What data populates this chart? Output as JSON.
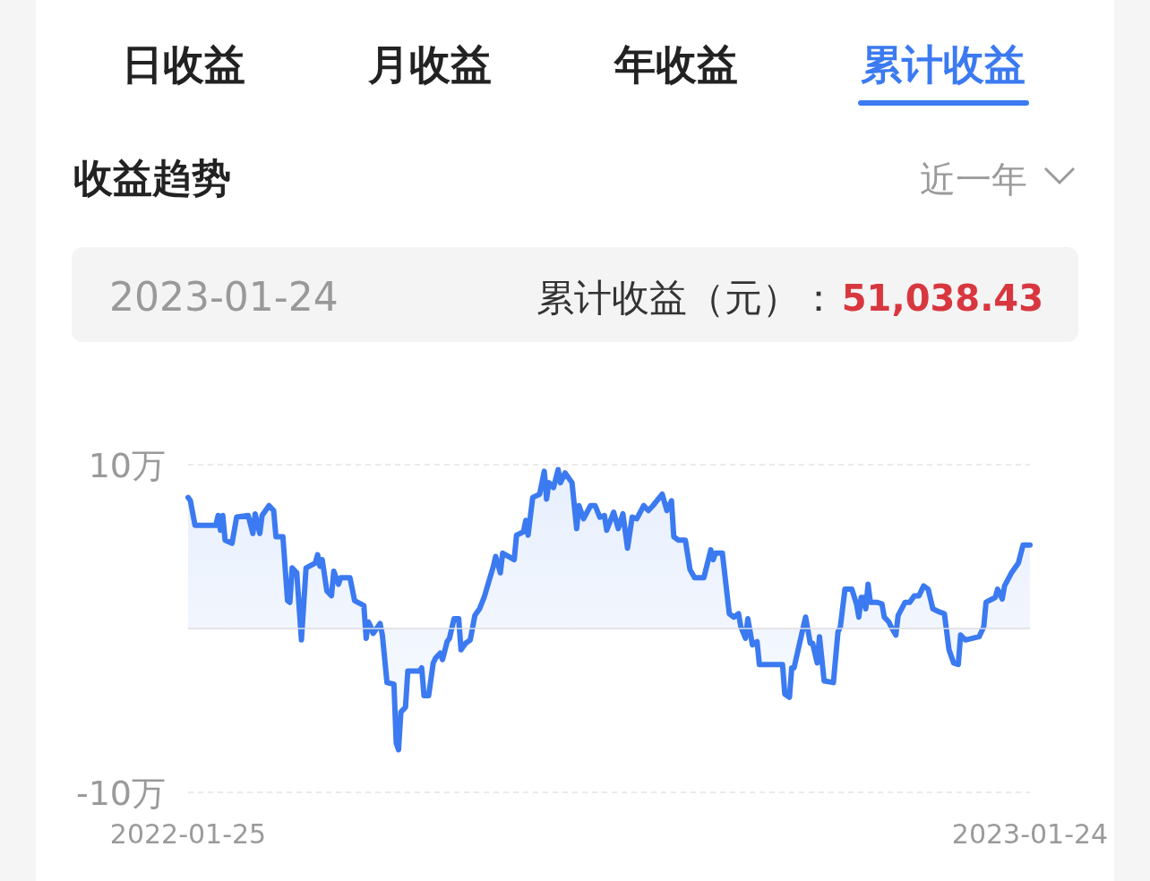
{
  "chart_data": {
    "type": "area",
    "annotations": [
      "日收益",
      "月收益",
      "年收益",
      "累计收益",
      "收益趋势",
      "近一年",
      "2023-01-24",
      "累计收益（元）：",
      "51,038.43"
    ],
    "x": [
      "2022-01-25",
      "2022-01-26",
      "2022-01-28",
      "2022-02-06",
      "2022-02-07",
      "2022-02-08",
      "2022-02-09",
      "2022-02-10",
      "2022-02-13",
      "2022-02-15",
      "2022-02-20",
      "2022-02-22",
      "2022-02-23",
      "2022-02-25",
      "2022-02-26",
      "2022-03-01",
      "2022-03-03",
      "2022-03-04",
      "2022-03-07",
      "2022-03-09",
      "2022-03-10",
      "2022-03-11",
      "2022-03-13",
      "2022-03-15",
      "2022-03-17",
      "2022-03-21",
      "2022-03-22",
      "2022-03-23",
      "2022-03-24",
      "2022-03-26",
      "2022-03-28",
      "2022-03-29",
      "2022-03-31",
      "2022-04-01",
      "2022-04-05",
      "2022-04-07",
      "2022-04-11",
      "2022-04-12",
      "2022-04-13",
      "2022-04-14",
      "2022-04-15",
      "2022-04-18",
      "2022-04-19",
      "2022-04-21",
      "2022-04-24",
      "2022-04-25",
      "2022-04-26",
      "2022-04-27",
      "2022-04-29",
      "2022-04-30",
      "2022-05-05",
      "2022-05-06",
      "2022-05-07",
      "2022-05-09",
      "2022-05-11",
      "2022-05-12",
      "2022-05-14",
      "2022-05-15",
      "2022-05-17",
      "2022-05-18",
      "2022-05-20",
      "2022-05-22",
      "2022-05-23",
      "2022-05-25",
      "2022-05-27",
      "2022-05-29",
      "2022-05-31",
      "2022-06-02",
      "2022-06-06",
      "2022-06-07",
      "2022-06-09",
      "2022-06-10",
      "2022-06-15",
      "2022-06-16",
      "2022-06-19",
      "2022-06-20",
      "2022-06-21",
      "2022-06-23",
      "2022-06-26",
      "2022-06-28",
      "2022-06-29",
      "2022-06-30",
      "2022-07-02",
      "2022-07-04",
      "2022-07-05",
      "2022-07-07",
      "2022-07-10",
      "2022-07-12",
      "2022-07-13",
      "2022-07-15",
      "2022-07-18",
      "2022-07-20",
      "2022-07-22",
      "2022-07-24",
      "2022-07-25",
      "2022-07-28",
      "2022-07-30",
      "2022-08-01",
      "2022-08-03",
      "2022-08-05",
      "2022-08-07",
      "2022-08-10",
      "2022-08-12",
      "2022-08-14",
      "2022-08-18",
      "2022-08-20",
      "2022-08-22",
      "2022-08-23",
      "2022-08-25",
      "2022-08-28",
      "2022-08-30",
      "2022-09-01",
      "2022-09-05",
      "2022-09-08",
      "2022-09-09",
      "2022-09-10",
      "2022-09-13",
      "2022-09-16",
      "2022-09-18",
      "2022-09-20",
      "2022-09-21",
      "2022-09-23",
      "2022-09-24",
      "2022-09-26",
      "2022-09-28",
      "2022-09-29",
      "2022-10-09",
      "2022-10-10",
      "2022-10-12",
      "2022-10-13",
      "2022-10-14",
      "2022-10-18",
      "2022-10-19",
      "2022-10-21",
      "2022-10-22",
      "2022-10-24",
      "2022-10-25",
      "2022-10-27",
      "2022-10-31",
      "2022-11-02",
      "2022-11-03",
      "2022-11-05",
      "2022-11-08",
      "2022-11-10",
      "2022-11-11",
      "2022-11-12",
      "2022-11-13",
      "2022-11-14",
      "2022-11-15",
      "2022-11-16",
      "2022-11-19",
      "2022-11-21",
      "2022-11-22",
      "2022-11-24",
      "2022-11-25",
      "2022-11-27",
      "2022-11-28",
      "2022-12-01",
      "2022-12-03",
      "2022-12-05",
      "2022-12-07",
      "2022-12-09",
      "2022-12-11",
      "2022-12-13",
      "2022-12-16",
      "2022-12-18",
      "2022-12-20",
      "2022-12-22",
      "2022-12-24",
      "2022-12-25",
      "2022-12-27",
      "2023-01-02",
      "2023-01-04",
      "2023-01-05",
      "2023-01-09",
      "2023-01-10",
      "2023-01-12",
      "2023-01-13",
      "2023-01-16",
      "2023-01-18",
      "2023-01-19",
      "2023-01-21",
      "2023-01-24"
    ],
    "series": [
      {
        "color": "#3b7af0",
        "values": [
          8.0,
          7.8,
          6.3,
          6.3,
          6.9,
          6.0,
          6.9,
          5.4,
          5.2,
          6.8,
          6.9,
          5.8,
          7.0,
          5.8,
          6.9,
          7.5,
          7.2,
          5.6,
          5.6,
          1.7,
          1.6,
          3.7,
          3.4,
          -0.7,
          3.7,
          4.0,
          4.5,
          3.8,
          4.2,
          2.3,
          2.0,
          3.5,
          2.7,
          3.1,
          3.1,
          1.7,
          1.4,
          -0.6,
          0.4,
          0.1,
          -0.3,
          0.3,
          -0.4,
          -3.3,
          -3.4,
          -7.0,
          -7.4,
          -5.1,
          -4.8,
          -2.6,
          -2.6,
          -2.4,
          -4.1,
          -4.1,
          -2.1,
          -1.8,
          -1.5,
          -1.9,
          -0.8,
          -0.6,
          0.6,
          0.6,
          -1.3,
          -0.9,
          -0.7,
          0.8,
          1.2,
          1.9,
          3.8,
          4.4,
          3.4,
          4.6,
          4.2,
          5.7,
          5.9,
          6.6,
          5.7,
          8.0,
          8.2,
          9.6,
          7.9,
          8.9,
          8.6,
          9.7,
          8.9,
          9.5,
          8.9,
          6.1,
          7.5,
          6.7,
          7.5,
          7.5,
          6.8,
          6.9,
          6.0,
          7.1,
          6.1,
          7.0,
          4.9,
          6.8,
          6.7,
          7.5,
          7.2,
          7.5,
          8.2,
          7.2,
          7.8,
          5.6,
          5.4,
          5.4,
          3.6,
          3.1,
          3.1,
          4.8,
          4.2,
          4.6,
          4.6,
          0.9,
          0.7,
          0.9,
          0.1,
          -0.6,
          0.6,
          -1.0,
          -0.8,
          -2.2,
          -2.2,
          -4.0,
          -4.2,
          -2.4,
          -2.4,
          0.1,
          0.7,
          -0.9,
          -0.9,
          -2.1,
          -0.5,
          -3.2,
          -3.3,
          -0.2,
          0.1,
          2.4,
          2.4,
          1.5,
          0.7,
          1.9,
          1.9,
          1.2,
          2.7,
          1.6,
          1.6,
          1.5,
          0.7,
          0.4,
          0.1,
          -0.4,
          0.8,
          1.6,
          1.6,
          2.0,
          2.0,
          2.6,
          2.4,
          1.2,
          1.0,
          0.9,
          -1.3,
          -2.1,
          -2.2,
          -0.4,
          -0.7,
          -0.5,
          0.1,
          1.6,
          1.9,
          2.4,
          1.8,
          2.6,
          3.4,
          3.8,
          4.0,
          5.1,
          5.1
        ]
      }
    ],
    "xlim": [
      "2022-01-25",
      "2023-01-24"
    ],
    "xticks": [
      {
        "value": "2022-01-25",
        "label": "2022-01-25"
      },
      {
        "value": "2023-01-24",
        "label": "2023-01-24"
      }
    ],
    "ylim": [
      -10,
      10
    ],
    "yticks": [
      {
        "value": 10,
        "label": "10万"
      },
      {
        "value": -10,
        "label": "-10万"
      }
    ],
    "grid": "y"
  }
}
